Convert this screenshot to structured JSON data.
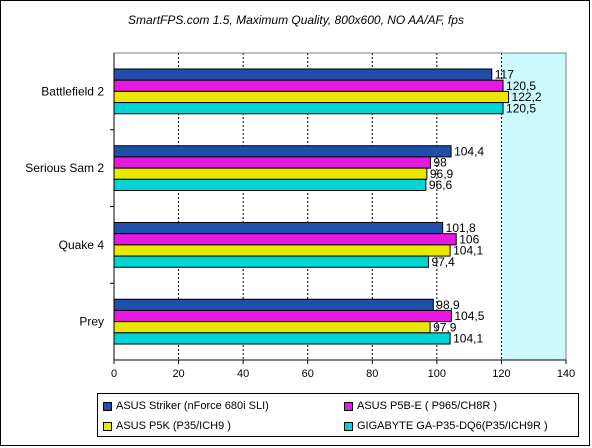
{
  "chart_data": {
    "type": "bar",
    "orientation": "horizontal",
    "title": "SmartFPS.com 1.5, Maximum Quality, 800x600, NO AA/AF, fps",
    "categories": [
      "Battlefield 2",
      "Serious Sam 2",
      "Quake 4",
      "Prey"
    ],
    "series": [
      {
        "name": "ASUS Striker (nForce 680i SLI)",
        "color": "#1f4fa8",
        "values": [
          117,
          104.4,
          101.8,
          98.9
        ],
        "labels": [
          "117",
          "104,4",
          "101,8",
          "98,9"
        ]
      },
      {
        "name": "ASUS P5B-E ( P965/CH8R )",
        "color": "#e619e0",
        "values": [
          120.5,
          98,
          106,
          104.5
        ],
        "labels": [
          "120,5",
          "98",
          "106",
          "104,5"
        ]
      },
      {
        "name": "ASUS P5K (P35/ICH9 )",
        "color": "#e8e800",
        "values": [
          122.2,
          96.9,
          104.1,
          97.9
        ],
        "labels": [
          "122,2",
          "96,9",
          "104,1",
          "97,9"
        ]
      },
      {
        "name": "GIGABYTE GA-P35-DQ6(P35/ICH9R )",
        "color": "#00d4d4",
        "values": [
          120.5,
          96.6,
          97.4,
          104.1
        ],
        "labels": [
          "120,5",
          "96,6",
          "97,4",
          "104,1"
        ]
      }
    ],
    "xlim": [
      0,
      140
    ],
    "xticks": [
      "0",
      "20",
      "40",
      "60",
      "80",
      "100",
      "120",
      "140"
    ],
    "grid": true,
    "legend": "bottom",
    "plot_bg": "#ffffff",
    "highlight_band": {
      "from": 120,
      "to": 140,
      "color": "#ccfaff"
    }
  }
}
